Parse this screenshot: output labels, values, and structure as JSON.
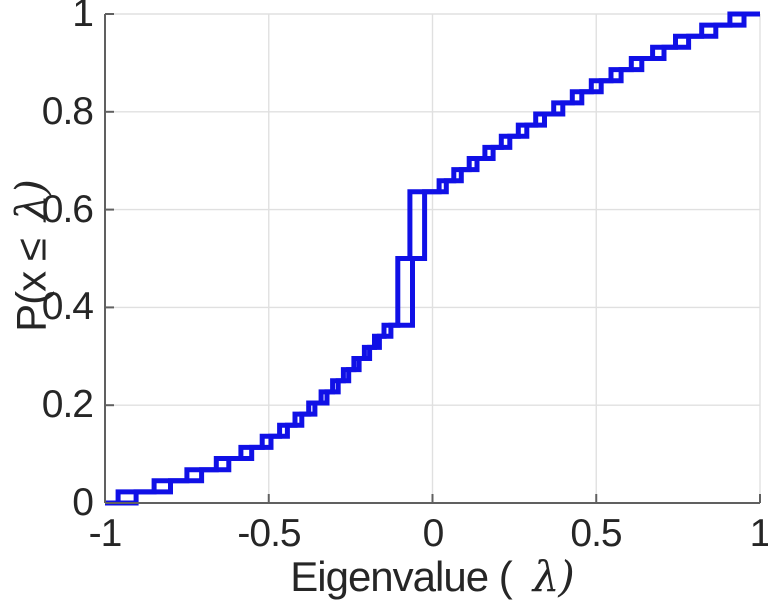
{
  "labels": {
    "xlabel_pre": "Eigenvalue (",
    "xlabel_lambda": "λ)",
    "ylabel_pre": "P(x ≤",
    "ylabel_lambda": "λ)"
  },
  "axes": {
    "x": {
      "tick_labels": [
        "-1",
        "-0.5",
        "0",
        "0.5",
        "1"
      ]
    },
    "y": {
      "tick_labels": [
        "0",
        "0.2",
        "0.4",
        "0.6",
        "0.8",
        "1"
      ]
    }
  },
  "chart_data": {
    "type": "line",
    "subtype": "ecdf-stairs",
    "title": "",
    "xlabel": "Eigenvalue ( λ)",
    "ylabel": "P(x ≤ λ)",
    "xlim": [
      -1,
      1
    ],
    "ylim": [
      0,
      1
    ],
    "x_ticks": [
      -1,
      -0.5,
      0,
      0.5,
      1
    ],
    "y_ticks": [
      0,
      0.2,
      0.4,
      0.6,
      0.8,
      1
    ],
    "grid": true,
    "legend": "none",
    "line_color": "#1010e6",
    "line_width": 5,
    "grid_color": "#e0e0e0",
    "axis_color": "#606060",
    "n_per_series": 44,
    "cdf_plateau_values": [
      0.364,
      0.5,
      0.636
    ],
    "series": [
      {
        "name": "ecdf-curve-1",
        "eigenvalues": [
          -0.96,
          -0.85,
          -0.75,
          -0.66,
          -0.585,
          -0.52,
          -0.467,
          -0.42,
          -0.378,
          -0.34,
          -0.305,
          -0.272,
          -0.24,
          -0.208,
          -0.177,
          -0.148,
          -0.106,
          -0.106,
          -0.106,
          -0.106,
          -0.106,
          -0.106,
          -0.069,
          -0.069,
          -0.069,
          -0.069,
          -0.069,
          -0.069,
          0.02,
          0.065,
          0.112,
          0.16,
          0.21,
          0.262,
          0.315,
          0.37,
          0.427,
          0.485,
          0.545,
          0.607,
          0.672,
          0.742,
          0.822,
          0.908
        ]
      },
      {
        "name": "ecdf-curve-2",
        "eigenvalues": [
          -0.905,
          -0.8,
          -0.705,
          -0.622,
          -0.552,
          -0.493,
          -0.443,
          -0.399,
          -0.359,
          -0.322,
          -0.288,
          -0.256,
          -0.224,
          -0.192,
          -0.162,
          -0.127,
          -0.061,
          -0.061,
          -0.061,
          -0.061,
          -0.061,
          -0.061,
          -0.024,
          -0.024,
          -0.024,
          -0.024,
          -0.024,
          -0.024,
          0.042,
          0.088,
          0.136,
          0.185,
          0.236,
          0.288,
          0.342,
          0.398,
          0.456,
          0.515,
          0.576,
          0.639,
          0.707,
          0.782,
          0.865,
          0.951
        ]
      }
    ]
  }
}
